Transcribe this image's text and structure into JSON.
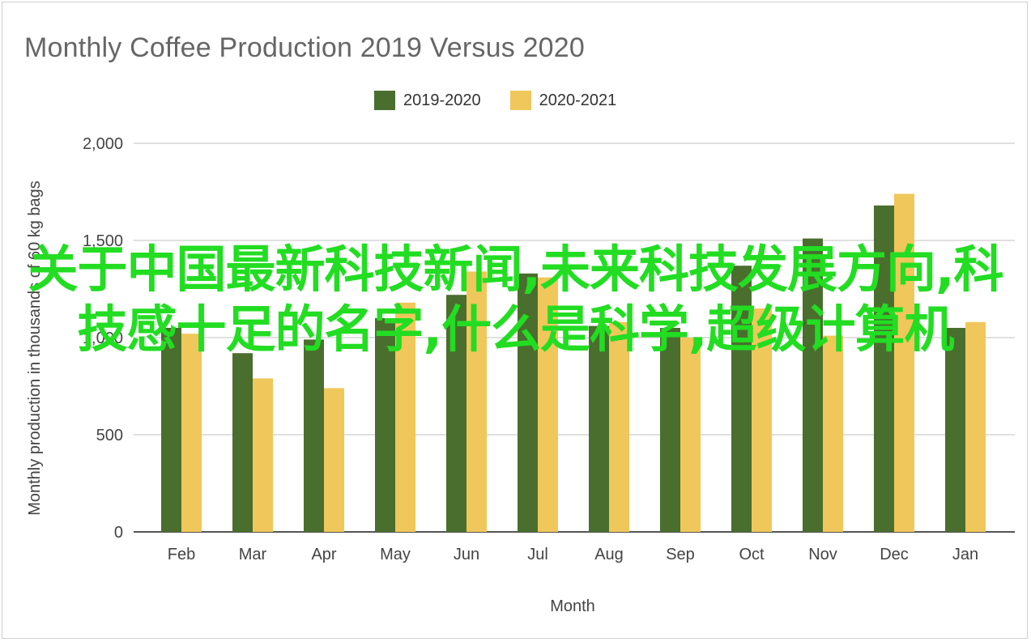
{
  "overlay_text": "关于中国最新科技新闻,未来科技发展方向,科技感十足的名字,什么是科学,超级计算机",
  "chart_data": {
    "type": "bar",
    "title": "Monthly Coffee Production 2019 Versus 2020",
    "xlabel": "Month",
    "ylabel": "Monthly production in thousands of 60 kg bags",
    "ylim": [
      0,
      2000
    ],
    "yticks": [
      0,
      500,
      1000,
      1500,
      2000
    ],
    "ytick_labels": [
      "0",
      "500",
      "1,000",
      "1,500",
      "2,000"
    ],
    "grid": true,
    "legend_position": "top-center",
    "categories": [
      "Feb",
      "Mar",
      "Apr",
      "May",
      "Jun",
      "Jul",
      "Aug",
      "Sep",
      "Oct",
      "Nov",
      "Dec",
      "Jan"
    ],
    "series": [
      {
        "name": "2019-2020",
        "color": "#4a6e2e",
        "values": [
          1050,
          920,
          990,
          1100,
          1220,
          1330,
          1060,
          1050,
          1370,
          1510,
          1680,
          1050
        ]
      },
      {
        "name": "2020-2021",
        "color": "#f0c75a",
        "values": [
          1020,
          790,
          740,
          1180,
          1340,
          1310,
          1080,
          1000,
          1150,
          1010,
          1740,
          1080
        ]
      }
    ]
  }
}
